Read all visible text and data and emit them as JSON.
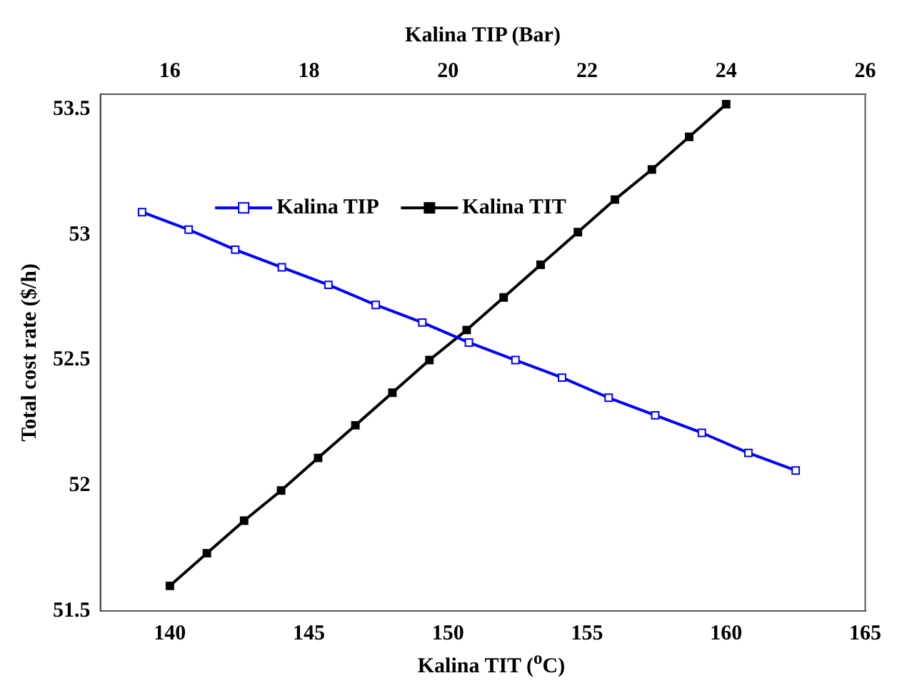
{
  "chart_data": {
    "type": "line",
    "xlabel": "Kalina TIT ($^{o}$C)",
    "x2label": "Kalina TIP (Bar)",
    "ylabel": "Total cost rate ($/h)",
    "xlim": [
      137.5,
      165
    ],
    "xticks": [
      140,
      145,
      150,
      155,
      160,
      165
    ],
    "x2lim": [
      15,
      26
    ],
    "x2ticks": [
      16,
      18,
      20,
      22,
      24,
      26
    ],
    "ylim": [
      51.5,
      53.56
    ],
    "yticks": [
      51.5,
      52,
      52.5,
      53,
      53.5
    ],
    "grid": false,
    "legend": "top left",
    "marker": "square",
    "line_style": "solid",
    "series": [
      {
        "name": "Kalina TIP",
        "color": "#0000ff",
        "axis": "x2",
        "x": [
          15.6,
          16.27,
          16.94,
          17.61,
          18.28,
          18.96,
          19.63,
          20.3,
          20.97,
          21.64,
          22.31,
          22.98,
          23.65,
          24.32,
          25.0
        ],
        "values": [
          53.09,
          53.02,
          52.94,
          52.87,
          52.8,
          52.72,
          52.65,
          52.57,
          52.5,
          52.43,
          52.35,
          52.28,
          52.21,
          52.13,
          52.06
        ]
      },
      {
        "name": "Kalina TIT",
        "color": "#000000",
        "x": [
          140,
          141.33,
          142.67,
          144,
          145.33,
          146.67,
          148,
          149.33,
          150.67,
          152,
          153.33,
          154.67,
          156,
          157.33,
          158.67,
          160
        ],
        "values": [
          51.6,
          51.73,
          51.86,
          51.98,
          52.11,
          52.24,
          52.37,
          52.5,
          52.62,
          52.75,
          52.88,
          53.01,
          53.14,
          53.26,
          53.39,
          53.52
        ]
      }
    ]
  }
}
